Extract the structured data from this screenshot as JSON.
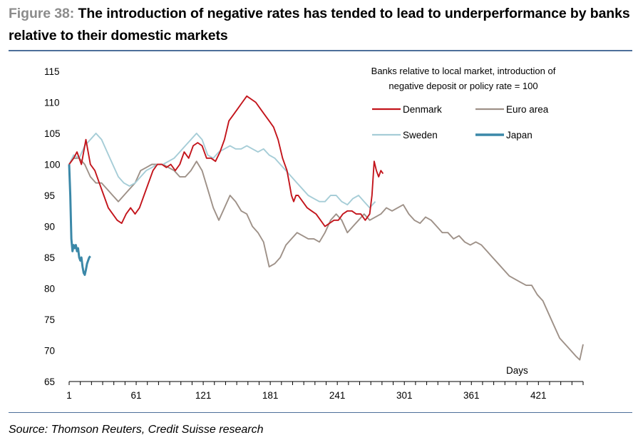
{
  "title": {
    "figure_label": "Figure 38:",
    "text": "The introduction of negative rates has tended to lead to underperformance by banks relative to their domestic markets"
  },
  "source": "Source: Thomson Reuters, Credit Suisse research",
  "chart_data": {
    "type": "line",
    "xlabel": "Days",
    "ylabel": "",
    "xlim": [
      1,
      461
    ],
    "ylim": [
      65,
      115
    ],
    "xticks": [
      1,
      61,
      121,
      181,
      241,
      301,
      361,
      421
    ],
    "yticks": [
      65,
      70,
      75,
      80,
      85,
      90,
      95,
      100,
      105,
      110,
      115
    ],
    "legend_title": [
      "Banks relative to local market, introduction of",
      "negative deposit or policy rate = 100"
    ],
    "legend_position": "top-right",
    "grid": false,
    "series": [
      {
        "name": "Denmark",
        "color": "#c3141b",
        "x": [
          1,
          5,
          8,
          12,
          16,
          20,
          24,
          28,
          32,
          36,
          40,
          44,
          48,
          52,
          56,
          60,
          64,
          68,
          72,
          76,
          80,
          84,
          88,
          92,
          96,
          100,
          104,
          108,
          112,
          116,
          120,
          124,
          128,
          132,
          136,
          140,
          144,
          148,
          152,
          156,
          160,
          164,
          168,
          172,
          176,
          180,
          184,
          188,
          192,
          196,
          198,
          200,
          202,
          204,
          206,
          210,
          214,
          218,
          222,
          226,
          230,
          234,
          238,
          242,
          246,
          250,
          254,
          258,
          262,
          266,
          270,
          272,
          274,
          276,
          278,
          280,
          282
        ],
        "values": [
          100,
          101,
          102,
          100,
          104,
          100,
          99,
          97,
          95,
          93,
          92,
          91,
          90.5,
          92,
          93,
          92,
          93,
          95,
          97,
          99,
          100,
          100,
          99.5,
          100,
          99,
          100,
          102,
          101,
          103,
          103.5,
          103,
          101,
          101,
          100.5,
          102,
          104,
          107,
          108,
          109,
          110,
          111,
          110.5,
          110,
          109,
          108,
          107,
          106,
          104,
          101,
          99,
          97,
          95,
          94,
          95,
          95,
          94,
          93,
          92.5,
          92,
          91,
          90,
          90.5,
          91,
          91,
          92,
          92.5,
          92.5,
          92,
          92,
          91,
          92,
          95,
          100.5,
          99,
          98,
          99,
          98.5
        ]
      },
      {
        "name": "Euro area",
        "color": "#9e9188",
        "x": [
          1,
          5,
          10,
          15,
          20,
          25,
          30,
          35,
          40,
          45,
          50,
          55,
          60,
          65,
          70,
          75,
          80,
          85,
          90,
          95,
          100,
          105,
          110,
          115,
          120,
          125,
          130,
          135,
          140,
          145,
          150,
          155,
          160,
          165,
          170,
          175,
          180,
          185,
          190,
          195,
          200,
          205,
          210,
          215,
          220,
          225,
          230,
          235,
          240,
          245,
          250,
          255,
          260,
          265,
          270,
          275,
          280,
          285,
          290,
          295,
          300,
          305,
          310,
          315,
          320,
          325,
          330,
          335,
          340,
          345,
          350,
          355,
          360,
          365,
          370,
          375,
          380,
          385,
          390,
          395,
          400,
          405,
          410,
          415,
          420,
          425,
          430,
          435,
          440,
          445,
          450,
          455,
          458,
          461
        ],
        "values": [
          100,
          101,
          101,
          100,
          98,
          97,
          97,
          96,
          95,
          94,
          95,
          96,
          97,
          99,
          99.5,
          100,
          100,
          100,
          99.5,
          99,
          98,
          98,
          99,
          100.5,
          99,
          96,
          93,
          91,
          93,
          95,
          94,
          92.5,
          92,
          90,
          89,
          87.5,
          83.5,
          84,
          85,
          87,
          88,
          89,
          88.5,
          88,
          88,
          87.5,
          89,
          91,
          92,
          91,
          89,
          90,
          91,
          92,
          91,
          91.5,
          92,
          93,
          92.5,
          93,
          93.5,
          92,
          91,
          90.5,
          91.5,
          91,
          90,
          89,
          89,
          88,
          88.5,
          87.5,
          87,
          87.5,
          87,
          86,
          85,
          84,
          83,
          82,
          81.5,
          81,
          80.5,
          80.5,
          79,
          78,
          76,
          74,
          72,
          71,
          70,
          69,
          68.5,
          71
        ]
      },
      {
        "name": "Sweden",
        "color": "#a6cdd7",
        "x": [
          1,
          5,
          10,
          15,
          20,
          25,
          30,
          35,
          40,
          45,
          50,
          55,
          60,
          65,
          70,
          75,
          80,
          85,
          90,
          95,
          100,
          105,
          110,
          115,
          120,
          125,
          130,
          135,
          140,
          145,
          150,
          155,
          160,
          165,
          170,
          175,
          180,
          185,
          190,
          195,
          200,
          205,
          210,
          215,
          220,
          225,
          230,
          235,
          240,
          245,
          250,
          255,
          260,
          265,
          270,
          275
        ],
        "values": [
          100,
          101.5,
          101,
          103,
          104,
          105,
          104,
          102,
          100,
          98,
          97,
          96.5,
          97,
          98,
          99,
          99.5,
          100,
          100,
          100.5,
          101,
          102,
          103,
          104,
          105,
          104,
          101.5,
          101,
          102,
          102.5,
          103,
          102.5,
          102.5,
          103,
          102.5,
          102,
          102.5,
          101.5,
          101,
          100,
          99,
          98,
          97,
          96,
          95,
          94.5,
          94,
          94,
          95,
          95,
          94,
          93.5,
          94.5,
          95,
          94,
          93,
          94
        ]
      },
      {
        "name": "Japan",
        "color": "#3b88a8",
        "x": [
          1,
          2,
          3,
          4,
          5,
          6,
          7,
          8,
          9,
          10,
          11,
          12,
          13,
          14,
          15,
          16,
          17,
          18,
          19,
          20
        ],
        "values": [
          100,
          95,
          88,
          86,
          87,
          86.5,
          87,
          86,
          86.5,
          85,
          84.5,
          85,
          83.5,
          82.5,
          82.2,
          83,
          84,
          84.5,
          85,
          85.2
        ]
      }
    ]
  }
}
